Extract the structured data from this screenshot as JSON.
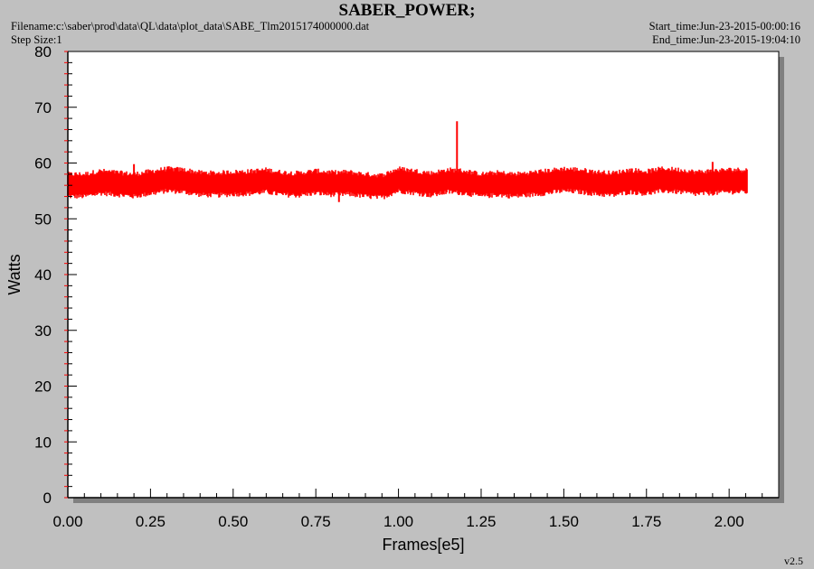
{
  "header": {
    "title": "SABER_POWER;",
    "filename": "Filename:c:\\saber\\prod\\data\\QL\\data\\plot_data\\SABE_Tlm2015174000000.dat",
    "step_size": "Step Size:1",
    "start_time": "Start_time:Jun-23-2015-00:00:16",
    "end_time": "End_time:Jun-23-2015-19:04:10"
  },
  "footer": {
    "version": "v2.5"
  },
  "colors": {
    "series": "#ff0000",
    "background": "#c0c0c0",
    "plot_background": "#ffffff",
    "axis": "#000000"
  },
  "chart_data": {
    "type": "line",
    "title": "SABER_POWER;",
    "xlabel": "Frames[e5]",
    "ylabel": "Watts",
    "xlim": [
      0,
      2.15
    ],
    "ylim": [
      0,
      80
    ],
    "x_ticks": [
      "0.00",
      "0.25",
      "0.50",
      "0.75",
      "1.00",
      "1.25",
      "1.50",
      "1.75",
      "2.00"
    ],
    "y_ticks": [
      "0",
      "10",
      "20",
      "30",
      "40",
      "50",
      "60",
      "70",
      "80"
    ],
    "grid": false,
    "legend": "none",
    "series": [
      {
        "color": "#ff0000",
        "band": {
          "x": [
            0.0,
            0.05,
            0.1,
            0.15,
            0.2,
            0.25,
            0.3,
            0.35,
            0.4,
            0.45,
            0.5,
            0.55,
            0.6,
            0.65,
            0.7,
            0.75,
            0.8,
            0.85,
            0.9,
            0.95,
            1.0,
            1.05,
            1.1,
            1.15,
            1.2,
            1.25,
            1.3,
            1.35,
            1.4,
            1.45,
            1.5,
            1.55,
            1.6,
            1.65,
            1.7,
            1.75,
            1.8,
            1.85,
            1.9,
            1.95,
            2.0,
            2.05
          ],
          "low": [
            54.0,
            54.0,
            54.6,
            54.3,
            54.0,
            54.5,
            55.0,
            54.8,
            54.3,
            54.2,
            54.4,
            54.5,
            54.8,
            54.3,
            54.2,
            54.6,
            54.3,
            54.4,
            54.0,
            53.8,
            55.0,
            54.6,
            54.2,
            54.8,
            54.6,
            54.0,
            54.3,
            54.0,
            54.3,
            54.6,
            55.0,
            54.8,
            54.4,
            54.2,
            54.8,
            54.5,
            55.0,
            54.8,
            54.4,
            54.6,
            54.8,
            54.8
          ],
          "high": [
            58.0,
            58.0,
            58.6,
            58.3,
            58.0,
            58.5,
            59.0,
            58.8,
            58.3,
            58.2,
            58.4,
            58.5,
            58.8,
            58.3,
            58.2,
            58.6,
            58.3,
            58.4,
            58.0,
            57.8,
            59.0,
            58.6,
            58.2,
            58.8,
            58.6,
            58.0,
            58.3,
            58.0,
            58.3,
            58.6,
            59.0,
            58.8,
            58.4,
            58.2,
            58.8,
            58.5,
            59.0,
            58.8,
            58.4,
            58.6,
            58.8,
            58.8
          ]
        },
        "spikes": [
          {
            "x": 1.177,
            "y": 67.5
          },
          {
            "x": 1.95,
            "y": 60.2
          },
          {
            "x": 0.2,
            "y": 59.8
          },
          {
            "x": 0.82,
            "y": 53.0
          }
        ],
        "x_end": 2.055
      }
    ]
  }
}
